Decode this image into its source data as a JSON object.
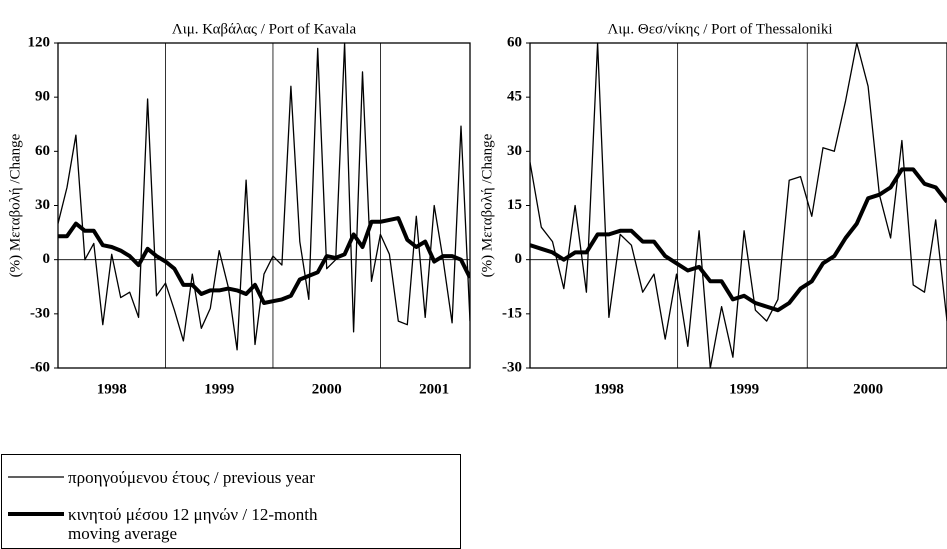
{
  "chart_data": [
    {
      "type": "line",
      "title": "Λιμ. Καβάλας / Port of Kavala",
      "y_label": "(%) Μεταβολή /Change",
      "categories": [
        null,
        null,
        null,
        null,
        null,
        null,
        "1998",
        null,
        null,
        null,
        null,
        null,
        null,
        null,
        null,
        null,
        null,
        null,
        "1999",
        null,
        null,
        null,
        null,
        null,
        null,
        null,
        null,
        null,
        null,
        null,
        "2000",
        null,
        null,
        null,
        null,
        null,
        null,
        null,
        null,
        null,
        null,
        null,
        "2001",
        null,
        null,
        null,
        null
      ],
      "ylim": [
        -60,
        120
      ],
      "yticks": [
        -60,
        -30,
        0,
        30,
        60,
        90,
        120
      ],
      "zero_line": true,
      "series": [
        {
          "name": "προηγούμενου έτους / previous year",
          "color": "#000000",
          "width": 1.3,
          "values": [
            20,
            40,
            69,
            0,
            9,
            -36,
            3,
            -21,
            -18,
            -32,
            89,
            -20,
            -13,
            -28,
            -45,
            -8,
            -38,
            -27,
            5,
            -15,
            -50,
            44,
            -47,
            -8,
            2,
            -3,
            96,
            10,
            -22,
            117,
            -5,
            0,
            120,
            -40,
            104,
            -12,
            14,
            3,
            -34,
            -36,
            24,
            -32,
            30,
            0,
            -35,
            74,
            -34
          ]
        },
        {
          "name": "κινητού μέσου 12 μηνών / 12-month moving average",
          "color": "#000000",
          "width": 4,
          "values": [
            13,
            13,
            20,
            16,
            16,
            8,
            7,
            5,
            2,
            -3,
            6,
            2,
            -1,
            -5,
            -14,
            -14,
            -19,
            -17,
            -17,
            -16,
            -17,
            -19,
            -14,
            -24,
            -23,
            -22,
            -20,
            -11,
            -9,
            -7,
            2,
            1,
            3,
            14,
            7,
            21,
            21,
            22,
            23,
            11,
            7,
            10,
            -1,
            2,
            2,
            0,
            -10
          ]
        }
      ]
    },
    {
      "type": "line",
      "title": "Λιμ. Θεσ/νίκης / Port of Thessaloniki",
      "y_label": "(%) Μεταβολή /Change",
      "categories": [
        null,
        null,
        null,
        null,
        null,
        null,
        null,
        "1998",
        null,
        null,
        null,
        null,
        null,
        null,
        null,
        null,
        null,
        null,
        null,
        "1999",
        null,
        null,
        null,
        null,
        null,
        null,
        null,
        null,
        null,
        null,
        "2000",
        null,
        null,
        null,
        null,
        null,
        null,
        null
      ],
      "ylim": [
        -30,
        60
      ],
      "yticks": [
        -30,
        -15,
        0,
        15,
        30,
        45,
        60
      ],
      "zero_line": true,
      "series": [
        {
          "name": "προηγούμενου έτους / previous year",
          "color": "#000000",
          "width": 1.3,
          "values": [
            27,
            9,
            5,
            -8,
            15,
            -9,
            60,
            -16,
            7,
            4,
            -9,
            -4,
            -22,
            -4,
            -24,
            8,
            -30,
            -13,
            -27,
            8,
            -14,
            -17,
            -11,
            22,
            23,
            12,
            31,
            30,
            44,
            60,
            48,
            18,
            6,
            33,
            -7,
            -9,
            11,
            -17
          ]
        },
        {
          "name": "κινητού μέσου 12 μηνών / 12-month moving average",
          "color": "#000000",
          "width": 4,
          "values": [
            4,
            3,
            2,
            0,
            2,
            2,
            7,
            7,
            8,
            8,
            5,
            5,
            1,
            -1,
            -3,
            -2,
            -6,
            -6,
            -11,
            -10,
            -12,
            -13,
            -14,
            -12,
            -8,
            -6,
            -1,
            1,
            6,
            10,
            17,
            18,
            20,
            25,
            25,
            21,
            20,
            16
          ]
        }
      ]
    }
  ]
}
